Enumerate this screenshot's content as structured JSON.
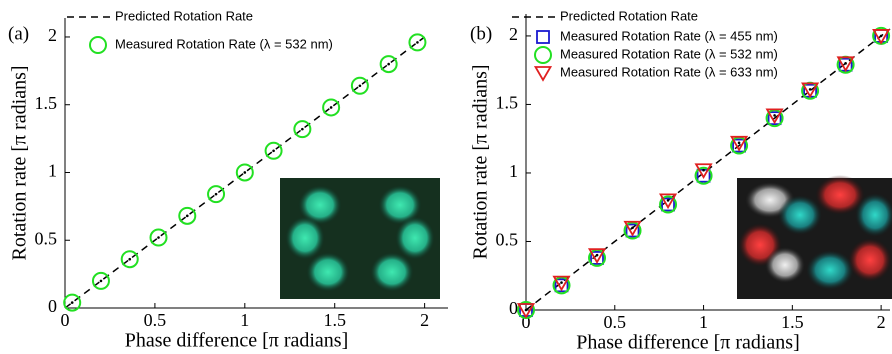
{
  "chart_data": [
    {
      "type": "line",
      "panel_label": "(a)",
      "xlabel": "Phase difference [π radians]",
      "ylabel": "Rotation rate [π radians]",
      "xlim": [
        0,
        2.13
      ],
      "ylim": [
        0,
        2.14
      ],
      "xticks": [
        0,
        0.5,
        1,
        1.5,
        2
      ],
      "yticks": [
        0,
        0.5,
        1,
        1.5,
        2
      ],
      "legend": "upper left",
      "series": [
        {
          "name": "Predicted Rotation Rate",
          "color": "#000000",
          "style": "dashed",
          "x": [
            0,
            2
          ],
          "values": [
            0,
            2
          ]
        },
        {
          "name": "Measured Rotation Rate (λ = 532 nm)",
          "color": "#22e022",
          "style": "circle",
          "x": [
            0.04,
            0.2,
            0.36,
            0.52,
            0.68,
            0.84,
            1.0,
            1.16,
            1.32,
            1.48,
            1.64,
            1.8,
            1.96
          ],
          "values": [
            0.04,
            0.2,
            0.36,
            0.52,
            0.68,
            0.84,
            1.0,
            1.16,
            1.32,
            1.48,
            1.64,
            1.8,
            1.96
          ]
        }
      ]
    },
    {
      "type": "line",
      "panel_label": "(b)",
      "xlabel": "Phase difference [π radians]",
      "ylabel": "Rotation rate [π radians]",
      "xlim": [
        0,
        2.05
      ],
      "ylim": [
        0,
        2.16
      ],
      "xticks": [
        0,
        0.5,
        1,
        1.5,
        2
      ],
      "yticks": [
        0,
        0.5,
        1,
        1.5,
        2
      ],
      "legend": "upper left",
      "series": [
        {
          "name": "Predicted Rotation Rate",
          "color": "#000000",
          "style": "dashed",
          "x": [
            0,
            2.05
          ],
          "values": [
            0,
            2.05
          ]
        },
        {
          "name": "Measured Rotation Rate (λ = 455 nm)",
          "color": "#1a1ad0",
          "style": "square",
          "x": [
            0,
            0.2,
            0.4,
            0.6,
            0.8,
            1.0,
            1.2,
            1.4,
            1.6,
            1.8,
            2.0
          ],
          "values": [
            0,
            0.18,
            0.38,
            0.58,
            0.77,
            0.98,
            1.2,
            1.4,
            1.6,
            1.79,
            2.0
          ]
        },
        {
          "name": "Measured Rotation Rate (λ = 532 nm)",
          "color": "#22e022",
          "style": "circle",
          "x": [
            0,
            0.2,
            0.4,
            0.6,
            0.8,
            1.0,
            1.2,
            1.4,
            1.6,
            1.8,
            2.0
          ],
          "values": [
            0,
            0.18,
            0.38,
            0.58,
            0.77,
            0.98,
            1.2,
            1.4,
            1.6,
            1.79,
            2.0
          ]
        },
        {
          "name": "Measured Rotation Rate (λ = 633 nm)",
          "color": "#e02020",
          "style": "triangle",
          "x": [
            0,
            0.2,
            0.4,
            0.6,
            0.8,
            1.0,
            1.2,
            1.4,
            1.6,
            1.8,
            2.0
          ],
          "values": [
            0,
            0.2,
            0.4,
            0.6,
            0.8,
            1.02,
            1.22,
            1.42,
            1.61,
            1.8,
            2.0
          ]
        }
      ]
    }
  ]
}
